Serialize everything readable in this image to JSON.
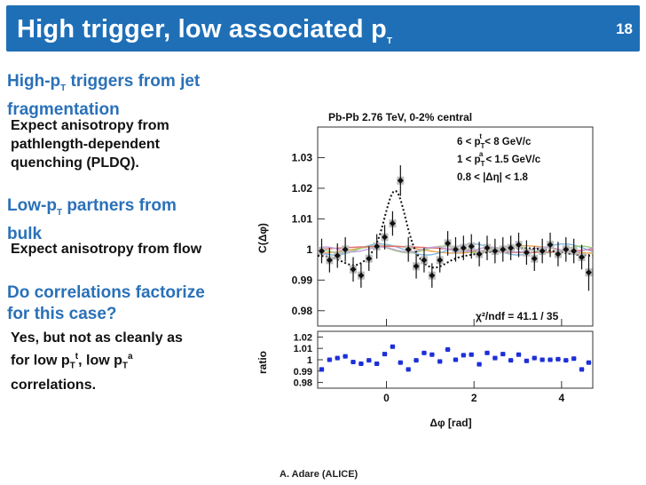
{
  "slide": {
    "title_main": "High trigger, low associated p",
    "title_sub": "T",
    "number": "18",
    "footer": "A. Adare (ALICE)"
  },
  "bullets": {
    "b1_head_a": "High-p",
    "b1_head_sub": "T",
    "b1_head_b": " triggers from jet",
    "b1_head_line2": "fragmentation",
    "b1_text": [
      "Expect anisotropy from",
      "pathlength-dependent",
      "quenching (PLDQ)."
    ],
    "b2_head_a": "Low-p",
    "b2_head_sub": "T",
    "b2_head_b": " partners from",
    "b2_head_line2": "bulk",
    "b2_text": "Expect anisotropy from flow",
    "b3_head": [
      "Do correlations factorize",
      "for this case?"
    ],
    "b3_line1": "Yes, but not as cleanly as",
    "b3_line2_a": "for low p",
    "b3_line2_sub": "T",
    "b3_line2_sup": "t",
    "b3_line2_b": ", low p",
    "b3_line2_sub2": "T",
    "b3_line2_sup2": "a",
    "b3_line3": "correlations."
  },
  "chart_data": {
    "type": "scatter",
    "title": "Pb-Pb 2.76 TeV, 0-2% central",
    "legend": [
      "6 < p_T^t < 8 GeV/c",
      "1 < p_T^a < 1.5 GeV/c",
      "0.8 < |Δη| < 1.8"
    ],
    "chi2": "χ²/ndf = 41.1 / 35",
    "ylabel": "C(Δφ)",
    "xlabel": "Δφ [rad]",
    "ratio_label": "ratio",
    "ylim": [
      0.975,
      1.04
    ],
    "xlim": [
      -1.571,
      4.712
    ],
    "yticks": [
      0.98,
      0.99,
      1,
      1.01,
      1.02,
      1.03
    ],
    "ytick_labels": [
      "0.98",
      "0.99",
      "1",
      "1.01",
      "1.02",
      "1.03"
    ],
    "ratio_ylim": [
      0.975,
      1.025
    ],
    "ratio_yticks": [
      0.98,
      0.99,
      1,
      1.01,
      1.02
    ],
    "ratio_ytick_labels": [
      "0.98",
      "0.99",
      "1",
      "1.01",
      "1.02"
    ],
    "xticks": [
      0,
      2,
      4
    ],
    "xtick_labels": [
      "0",
      "2",
      "4"
    ],
    "x": [
      -1.48,
      -1.3,
      -1.12,
      -0.94,
      -0.76,
      -0.58,
      -0.4,
      -0.22,
      -0.04,
      0.14,
      0.32,
      0.5,
      0.68,
      0.86,
      1.04,
      1.22,
      1.4,
      1.58,
      1.76,
      1.94,
      2.12,
      2.3,
      2.48,
      2.66,
      2.84,
      3.02,
      3.2,
      3.38,
      3.56,
      3.74,
      3.92,
      4.1,
      4.28,
      4.46,
      4.62
    ],
    "values": [
      0.9995,
      0.9965,
      0.998,
      1.0,
      0.9935,
      0.9915,
      0.997,
      1.001,
      1.004,
      1.0085,
      1.0225,
      1.0,
      0.9945,
      0.9965,
      0.9915,
      0.9965,
      1.002,
      1.0,
      1.0005,
      1.001,
      0.9985,
      1.0005,
      0.9995,
      1.0,
      1.0005,
      1.0015,
      0.999,
      0.997,
      0.9995,
      1.0015,
      0.9985,
      1.0,
      0.9995,
      0.9975,
      0.9925
    ],
    "errors": [
      0.004,
      0.004,
      0.004,
      0.004,
      0.004,
      0.004,
      0.004,
      0.004,
      0.004,
      0.004,
      0.005,
      0.004,
      0.004,
      0.004,
      0.004,
      0.004,
      0.004,
      0.004,
      0.004,
      0.004,
      0.004,
      0.004,
      0.004,
      0.004,
      0.004,
      0.004,
      0.004,
      0.004,
      0.004,
      0.004,
      0.004,
      0.004,
      0.004,
      0.004,
      0.006
    ],
    "ratio_values": [
      0.9915,
      1.0,
      1.0015,
      1.003,
      0.998,
      0.9965,
      0.9995,
      0.9965,
      1.005,
      1.0115,
      0.9975,
      0.9915,
      0.9995,
      1.006,
      1.0045,
      0.9985,
      1.009,
      1.0,
      1.004,
      1.0045,
      0.996,
      1.006,
      1.0015,
      1.005,
      0.9995,
      1.0045,
      0.999,
      1.0015,
      1.0,
      1.0,
      1.0005,
      0.9995,
      1.001,
      0.9915,
      0.9975
    ]
  },
  "colors": {
    "title_bg": "#1f6fb7",
    "heading": "#2a71b8",
    "ratio_points": "#1d2fd8"
  }
}
